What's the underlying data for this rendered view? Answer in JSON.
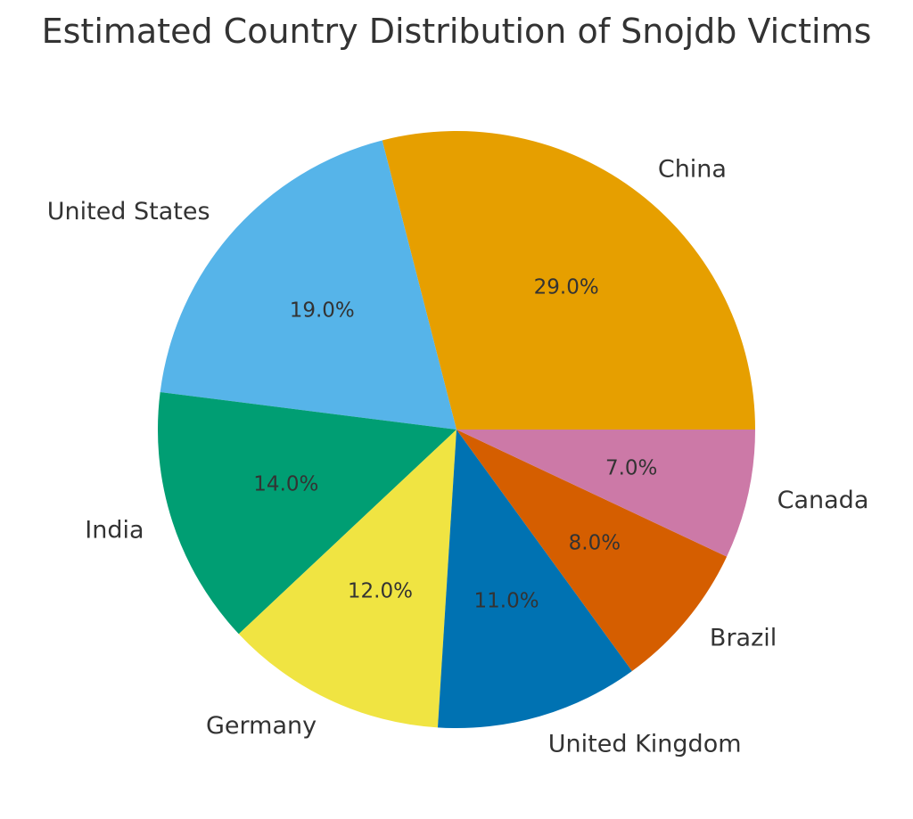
{
  "chart_data": {
    "type": "pie",
    "title": "Estimated Country Distribution of Snojdb Victims",
    "start_angle_deg": 0,
    "direction": "counterclockwise",
    "slices": [
      {
        "label": "China",
        "value": 29.0,
        "pct_label": "29.0%",
        "color": "#E69F00"
      },
      {
        "label": "United States",
        "value": 19.0,
        "pct_label": "19.0%",
        "color": "#56B4E9"
      },
      {
        "label": "India",
        "value": 14.0,
        "pct_label": "14.0%",
        "color": "#009E73"
      },
      {
        "label": "Germany",
        "value": 12.0,
        "pct_label": "12.0%",
        "color": "#F0E442"
      },
      {
        "label": "United Kingdom",
        "value": 11.0,
        "pct_label": "11.0%",
        "color": "#0072B2"
      },
      {
        "label": "Brazil",
        "value": 8.0,
        "pct_label": "8.0%",
        "color": "#D55E00"
      },
      {
        "label": "Canada",
        "value": 7.0,
        "pct_label": "7.0%",
        "color": "#CC79A7"
      }
    ]
  }
}
